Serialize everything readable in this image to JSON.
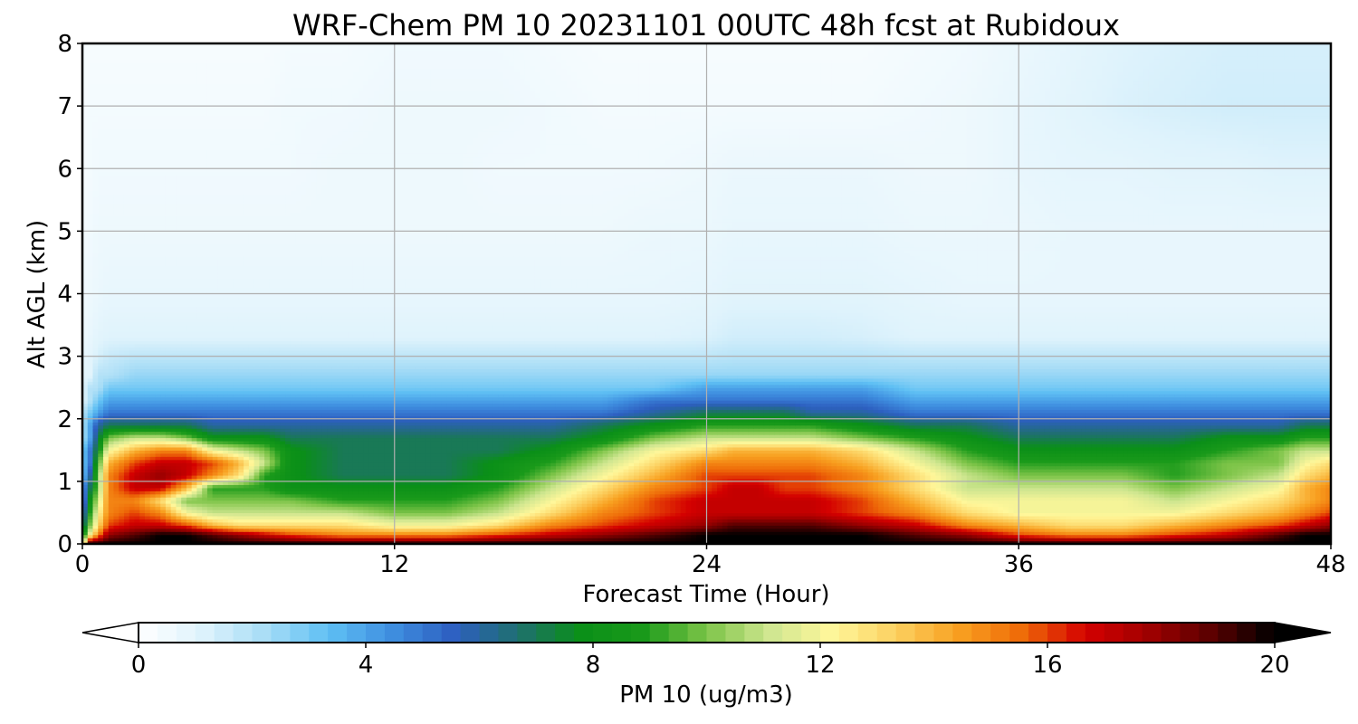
{
  "chart_data": {
    "type": "heatmap",
    "title": "WRF-Chem PM 10  20231101 00UTC 48h fcst at Rubidoux",
    "xlabel": "Forecast Time (Hour)",
    "ylabel": "Alt AGL (km)",
    "xlim": [
      0,
      48
    ],
    "ylim": [
      0,
      8
    ],
    "xticks": [
      0,
      12,
      24,
      36,
      48
    ],
    "yticks": [
      0,
      1,
      2,
      3,
      4,
      5,
      6,
      7,
      8
    ],
    "grid": true,
    "colorbar": {
      "label": "PM 10  (ug/m3)",
      "ticks": [
        0,
        4,
        8,
        12,
        16,
        20
      ],
      "range": [
        0,
        20
      ],
      "extend": "both",
      "colors": [
        "#ffffff",
        "#dff3fc",
        "#a8ddf6",
        "#5fc0f4",
        "#3f8fe0",
        "#2d5fc0",
        "#1f6f70",
        "#0a8f18",
        "#1a9a1a",
        "#7dc448",
        "#cfe690",
        "#fff79a",
        "#fcd060",
        "#f8a020",
        "#ee6a08",
        "#d40000",
        "#a00000",
        "#5a0000",
        "#000000"
      ]
    },
    "x": [
      0,
      0.3,
      0.6,
      1,
      2,
      3,
      4,
      5,
      6,
      7,
      8,
      10,
      12,
      14,
      16,
      18,
      20,
      22,
      24,
      25,
      26,
      27,
      28,
      30,
      32,
      34,
      36,
      38,
      40,
      42,
      44,
      46,
      47,
      48
    ],
    "z_levels_km": [
      0,
      0.15,
      0.3,
      0.5,
      0.7,
      0.9,
      1.1,
      1.3,
      1.5,
      1.7,
      1.9,
      2.1,
      2.3,
      2.5,
      2.7,
      3.0,
      3.3,
      4.0,
      5.0,
      6.0,
      7.0,
      8.0
    ],
    "series": [
      {
        "values": [
          10,
          20,
          20,
          20,
          20,
          20,
          20,
          20,
          20,
          20,
          20,
          20,
          20,
          20,
          20,
          20,
          20,
          20,
          20,
          20,
          20,
          20,
          20,
          20,
          20,
          20,
          20,
          20,
          20,
          20,
          20,
          20,
          20,
          20
        ]
      },
      {
        "values": [
          8,
          12,
          15,
          18,
          19,
          20,
          20,
          19,
          18,
          17,
          16,
          15,
          15,
          15,
          16,
          17,
          18,
          19,
          20,
          20,
          20,
          20,
          20,
          20,
          19,
          18,
          16,
          15,
          15,
          16,
          17,
          19,
          20,
          20
        ]
      },
      {
        "values": [
          6,
          10,
          13,
          16,
          17,
          17,
          16,
          14,
          13,
          13,
          13,
          13,
          12,
          12,
          13,
          15,
          16,
          17,
          18,
          19,
          19,
          19,
          19,
          18,
          17,
          15,
          14,
          13,
          13,
          14,
          15,
          16,
          17,
          18
        ]
      },
      {
        "values": [
          5,
          9,
          12,
          15,
          16,
          15,
          12,
          11,
          11,
          11,
          11,
          11,
          10,
          10,
          11,
          13,
          15,
          16,
          17,
          17,
          17,
          17,
          17,
          16,
          15,
          13,
          12,
          12,
          12,
          12,
          13,
          14,
          15,
          16
        ]
      },
      {
        "values": [
          4,
          8,
          11,
          15,
          15,
          13,
          10,
          10,
          10,
          10,
          10,
          9,
          9,
          9,
          10,
          12,
          14,
          16,
          17,
          17,
          17,
          17,
          17,
          16,
          14,
          12,
          12,
          12,
          12,
          11,
          12,
          13,
          14,
          15
        ]
      },
      {
        "values": [
          4,
          7,
          10,
          15,
          17,
          17,
          14,
          9,
          9,
          9,
          8,
          8,
          8,
          8,
          9,
          11,
          13,
          15,
          16,
          17,
          17,
          16,
          16,
          15,
          13,
          11,
          11,
          11,
          11,
          10,
          11,
          12,
          14,
          15
        ]
      },
      {
        "values": [
          3,
          6,
          10,
          15,
          17,
          18,
          17,
          15,
          13,
          9,
          8,
          7,
          7,
          7,
          8,
          10,
          12,
          14,
          16,
          16,
          16,
          16,
          16,
          15,
          13,
          11,
          10,
          10,
          10,
          9,
          10,
          11,
          13,
          14
        ]
      },
      {
        "values": [
          3,
          5,
          9,
          14,
          16,
          17,
          17,
          16,
          14,
          11,
          8,
          7,
          7,
          7,
          8,
          9,
          11,
          13,
          15,
          15,
          15,
          15,
          15,
          14,
          12,
          10,
          9,
          9,
          9,
          9,
          10,
          10,
          12,
          13
        ]
      },
      {
        "values": [
          3,
          5,
          8,
          12,
          14,
          15,
          15,
          12,
          11,
          10,
          8,
          7,
          7,
          7,
          7,
          8,
          10,
          12,
          13,
          14,
          14,
          14,
          14,
          13,
          11,
          9,
          8,
          8,
          8,
          8,
          9,
          10,
          11,
          11
        ]
      },
      {
        "values": [
          2,
          4,
          7,
          10,
          11,
          11,
          10,
          8,
          8,
          8,
          7,
          7,
          7,
          7,
          7,
          7,
          8,
          10,
          11,
          11,
          11,
          11,
          11,
          10,
          9,
          8,
          7,
          7,
          7,
          7,
          8,
          8,
          9,
          9
        ]
      },
      {
        "values": [
          2,
          4,
          6,
          7,
          7,
          7,
          7,
          6,
          6,
          6,
          6,
          6,
          6,
          6,
          6,
          6,
          7,
          8,
          9,
          9,
          9,
          9,
          9,
          8,
          7,
          7,
          6,
          6,
          6,
          6,
          6,
          6,
          7,
          7
        ]
      },
      {
        "values": [
          2,
          3,
          4,
          5,
          5,
          5,
          5,
          5,
          5,
          5,
          5,
          5,
          5,
          5,
          5,
          5,
          5,
          6,
          7,
          7,
          7,
          7,
          6,
          6,
          5,
          5,
          5,
          5,
          5,
          5,
          5,
          5,
          5,
          5
        ]
      },
      {
        "values": [
          1,
          2,
          3,
          4,
          4,
          4,
          4,
          4,
          4,
          4,
          4,
          4,
          4,
          4,
          4,
          4,
          4,
          5,
          5,
          5,
          5,
          5,
          5,
          5,
          4,
          4,
          4,
          4,
          4,
          4,
          4,
          4,
          4,
          4
        ]
      },
      {
        "values": [
          1,
          2,
          2,
          3,
          3,
          3,
          3,
          3,
          3,
          3,
          3,
          3,
          3,
          3,
          3,
          3,
          3,
          3,
          4,
          4,
          4,
          4,
          4,
          4,
          3,
          3,
          3,
          3,
          3,
          3,
          3,
          3,
          3,
          3
        ]
      },
      {
        "values": [
          1,
          1,
          2,
          2,
          2.5,
          2.5,
          2.5,
          2.5,
          2.5,
          2.5,
          2.5,
          2.5,
          2.5,
          2.5,
          2.5,
          2.5,
          2.5,
          2.5,
          2.5,
          2.5,
          2.5,
          2.5,
          2.5,
          2.5,
          2.5,
          2.5,
          2.5,
          2.5,
          2.5,
          2.5,
          2.5,
          2.5,
          2.5,
          2.5
        ]
      },
      {
        "values": [
          0.8,
          1,
          1.3,
          1.6,
          1.8,
          1.8,
          1.8,
          1.8,
          1.8,
          1.8,
          1.8,
          1.8,
          1.8,
          1.8,
          1.8,
          1.8,
          1.8,
          1.8,
          1.8,
          1.9,
          1.9,
          1.9,
          1.9,
          1.9,
          1.8,
          1.8,
          1.8,
          1.8,
          1.8,
          1.8,
          1.8,
          1.8,
          1.8,
          1.8
        ]
      },
      {
        "values": [
          0.6,
          0.8,
          1,
          1.1,
          1.1,
          1.1,
          1.1,
          1.1,
          1.1,
          1.1,
          1.1,
          1.1,
          1.1,
          1.1,
          1.1,
          1.1,
          1.1,
          1.1,
          1.2,
          1.4,
          1.4,
          1.4,
          1.4,
          1.3,
          1.1,
          1.1,
          1.1,
          1.1,
          1.1,
          1.1,
          1.1,
          1.1,
          1.1,
          1.1
        ]
      },
      {
        "values": [
          0.5,
          0.6,
          0.7,
          0.8,
          0.8,
          0.8,
          0.8,
          0.8,
          0.8,
          0.8,
          0.8,
          0.8,
          0.8,
          0.8,
          0.8,
          0.8,
          0.8,
          0.8,
          0.9,
          1,
          1,
          1,
          1,
          1,
          0.9,
          0.8,
          0.8,
          0.8,
          0.8,
          0.8,
          0.8,
          0.8,
          0.8,
          0.8
        ]
      },
      {
        "values": [
          0.4,
          0.5,
          0.6,
          0.6,
          0.6,
          0.6,
          0.6,
          0.6,
          0.6,
          0.6,
          0.6,
          0.6,
          0.6,
          0.6,
          0.6,
          0.6,
          0.6,
          0.7,
          0.7,
          0.8,
          0.8,
          0.8,
          0.8,
          0.8,
          0.7,
          0.7,
          0.7,
          0.8,
          0.8,
          0.8,
          0.8,
          0.8,
          0.8,
          0.8
        ]
      },
      {
        "values": [
          0.3,
          0.4,
          0.5,
          0.5,
          0.5,
          0.5,
          0.5,
          0.5,
          0.5,
          0.5,
          0.5,
          0.6,
          0.6,
          0.6,
          0.5,
          0.5,
          0.5,
          0.5,
          0.6,
          0.7,
          0.7,
          0.7,
          0.7,
          0.7,
          0.6,
          0.6,
          0.8,
          0.9,
          0.9,
          1,
          1,
          1.1,
          1.1,
          1.1
        ]
      },
      {
        "values": [
          0.3,
          0.4,
          0.4,
          0.4,
          0.4,
          0.4,
          0.4,
          0.4,
          0.4,
          0.4,
          0.5,
          0.5,
          0.6,
          0.6,
          0.6,
          0.5,
          0.4,
          0.4,
          0.4,
          0.4,
          0.4,
          0.4,
          0.4,
          0.4,
          0.5,
          0.6,
          0.8,
          1,
          1.2,
          1.3,
          1.4,
          1.4,
          1.4,
          1.4
        ]
      },
      {
        "values": [
          0.3,
          0.3,
          0.3,
          0.3,
          0.3,
          0.3,
          0.3,
          0.3,
          0.3,
          0.3,
          0.4,
          0.4,
          0.5,
          0.5,
          0.5,
          0.4,
          0.3,
          0.3,
          0.3,
          0.3,
          0.3,
          0.3,
          0.3,
          0.3,
          0.4,
          0.5,
          0.7,
          0.9,
          1.1,
          1.2,
          1.3,
          1.3,
          1.3,
          1.3
        ]
      }
    ]
  }
}
